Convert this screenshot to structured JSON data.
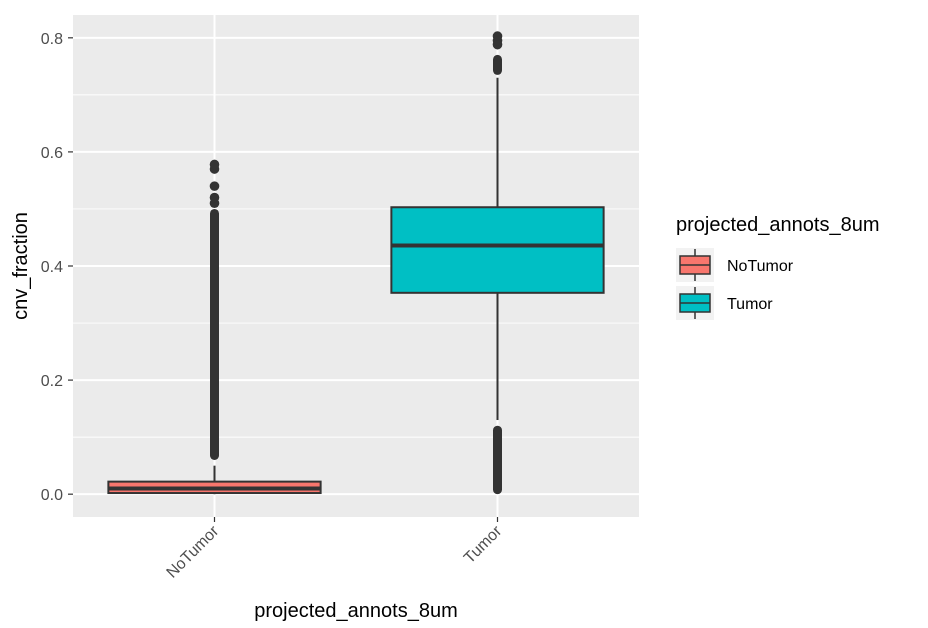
{
  "chart_data": {
    "type": "boxplot",
    "xlabel": "projected_annots_8um",
    "ylabel": "cnv_fraction",
    "ylim": [
      -0.04,
      0.84
    ],
    "yticks": [
      0.0,
      0.2,
      0.4,
      0.6,
      0.8
    ],
    "ytick_labels": [
      "0.0",
      "0.2",
      "0.4",
      "0.6",
      "0.8"
    ],
    "categories": [
      "NoTumor",
      "Tumor"
    ],
    "legend": {
      "title": "projected_annots_8um",
      "entries": [
        "NoTumor",
        "Tumor"
      ],
      "placement": "right"
    },
    "colors": {
      "panel": "#ebebeb",
      "grid_major": "#ffffff",
      "box_stroke": "#333333",
      "outlier": "#333333",
      "NoTumor": "#F8766D",
      "Tumor": "#00BFC4"
    },
    "boxes": [
      {
        "category": "NoTumor",
        "min": 0.0,
        "q1": 0.002,
        "median": 0.01,
        "q3": 0.022,
        "max": 0.05,
        "outlier_ranges": [
          [
            0.06,
            0.5
          ]
        ],
        "outlier_points": [
          0.51,
          0.52,
          0.54,
          0.57,
          0.578
        ]
      },
      {
        "category": "Tumor",
        "min": 0.13,
        "q1": 0.353,
        "median": 0.436,
        "q3": 0.503,
        "max": 0.73,
        "outlier_ranges": [
          [
            0.0,
            0.12
          ],
          [
            0.735,
            0.77
          ]
        ],
        "outlier_points": [
          0.788,
          0.795,
          0.803
        ]
      }
    ]
  }
}
